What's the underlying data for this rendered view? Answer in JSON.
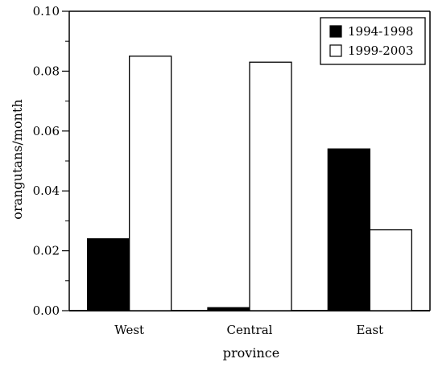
{
  "chart_data": {
    "type": "bar",
    "categories": [
      "West",
      "Central",
      "East"
    ],
    "series": [
      {
        "name": "1994-1998",
        "values": [
          0.024,
          0.001,
          0.054
        ],
        "fill": "#000000"
      },
      {
        "name": "1999-2003",
        "values": [
          0.085,
          0.083,
          0.027
        ],
        "fill": "#ffffff"
      }
    ],
    "xlabel": "province",
    "ylabel": "orangutans/month",
    "ylim": [
      0,
      0.1
    ],
    "yticks": [
      "0.00",
      "0.02",
      "0.04",
      "0.06",
      "0.08",
      "0.10"
    ],
    "grid": false,
    "legend_position": "top-right"
  }
}
